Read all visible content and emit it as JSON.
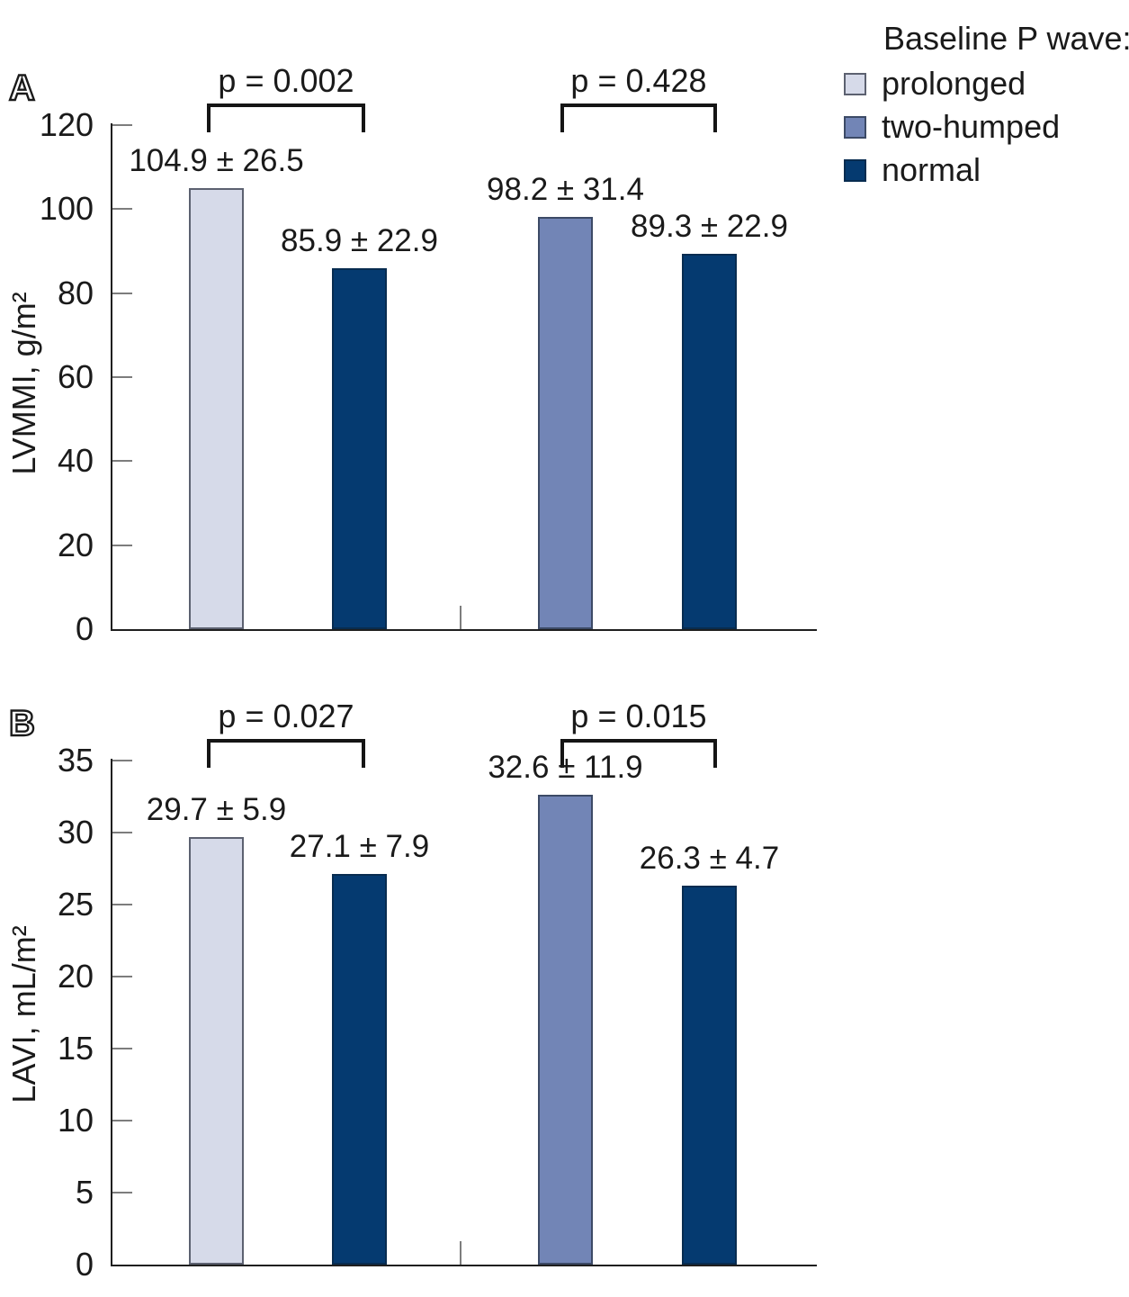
{
  "legend": {
    "title": "Baseline P wave:",
    "items": [
      {
        "label": "prolonged",
        "fill": "#d6dae9",
        "border": "#5c6170"
      },
      {
        "label": "two-humped",
        "fill": "#7285b6",
        "border": "#3c4a66"
      },
      {
        "label": "normal",
        "fill": "#053a70",
        "border": "#082c50"
      }
    ]
  },
  "chart_data": [
    {
      "type": "bar",
      "panel_letter": "A",
      "ylabel": "LVMMI, g/m²",
      "ylim": [
        0,
        120
      ],
      "yticks": [
        0,
        20,
        40,
        60,
        80,
        100,
        120
      ],
      "grid": false,
      "legend_position": "top-right",
      "groups": [
        {
          "p_label": "p = 0.002",
          "bars": [
            {
              "series": "prolonged",
              "value": 104.9,
              "sd": 26.5,
              "label": "104.9 ± 26.5"
            },
            {
              "series": "normal",
              "value": 85.9,
              "sd": 22.9,
              "label": "85.9 ± 22.9"
            }
          ]
        },
        {
          "p_label": "p = 0.428",
          "bars": [
            {
              "series": "two-humped",
              "value": 98.2,
              "sd": 31.4,
              "label": "98.2 ± 31.4"
            },
            {
              "series": "normal",
              "value": 89.3,
              "sd": 22.9,
              "label": "89.3 ± 22.9"
            }
          ]
        }
      ]
    },
    {
      "type": "bar",
      "panel_letter": "B",
      "ylabel": "LAVI, mL/m²",
      "ylim": [
        0,
        35
      ],
      "yticks": [
        0,
        5,
        10,
        15,
        20,
        25,
        30,
        35
      ],
      "grid": false,
      "groups": [
        {
          "p_label": "p = 0.027",
          "bars": [
            {
              "series": "prolonged",
              "value": 29.7,
              "sd": 5.9,
              "label": "29.7 ± 5.9"
            },
            {
              "series": "normal",
              "value": 27.1,
              "sd": 7.9,
              "label": "27.1 ± 7.9"
            }
          ]
        },
        {
          "p_label": "p = 0.015",
          "bars": [
            {
              "series": "two-humped",
              "value": 32.6,
              "sd": 11.9,
              "label": "32.6 ± 11.9"
            },
            {
              "series": "normal",
              "value": 26.3,
              "sd": 4.7,
              "label": "26.3 ± 4.7"
            }
          ]
        }
      ]
    }
  ]
}
